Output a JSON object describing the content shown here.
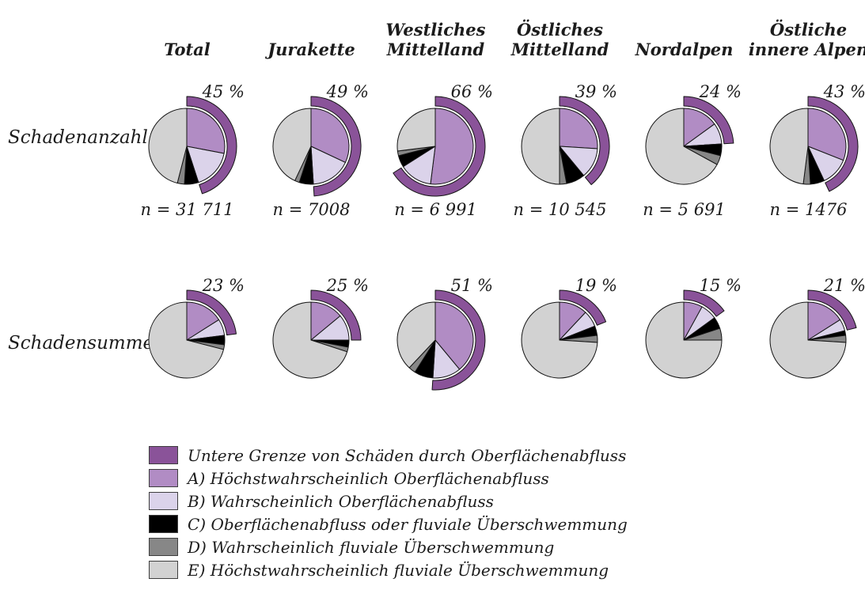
{
  "legend": {
    "items": [
      {
        "label": "Untere Grenze von Schäden durch Oberflächenabfluss",
        "color": "#8a5399"
      },
      {
        "label": "A) Höchstwahrscheinlich Oberflächenabfluss",
        "color": "#b18cc4"
      },
      {
        "label": "B) Wahrscheinlich Oberflächenabfluss",
        "color": "#dbd3ea"
      },
      {
        "label": "C) Oberflächenabfluss oder fluviale Überschwemmung",
        "color": "#000000"
      },
      {
        "label": "D) Wahrscheinlich fluviale Überschwemmung",
        "color": "#878787"
      },
      {
        "label": "E) Höchstwahrscheinlich fluviale Überschwemmung",
        "color": "#d2d2d2"
      }
    ]
  },
  "chart_data": {
    "type": "pie",
    "unit": "percent",
    "columns": [
      {
        "header_lines": [
          "Total"
        ]
      },
      {
        "header_lines": [
          "Jurakette"
        ]
      },
      {
        "header_lines": [
          "Westliches",
          "Mittelland"
        ]
      },
      {
        "header_lines": [
          "Östliches",
          "Mittelland"
        ]
      },
      {
        "header_lines": [
          "Nordalpen"
        ]
      },
      {
        "header_lines": [
          "Östliche",
          "innere Alpen"
        ]
      }
    ],
    "slice_categories": [
      "A) Höchstwahrscheinlich Oberflächenabfluss",
      "B) Wahrscheinlich Oberflächenabfluss",
      "C) Oberflächenabfluss oder fluviale Überschwemmung",
      "D) Wahrscheinlich fluviale Überschwemmung",
      "E) Höchstwahrscheinlich fluviale Überschwemmung"
    ],
    "arc_category": "Untere Grenze von Schäden durch Oberflächenabfluss",
    "rows": [
      {
        "label": "Schadenanzahl",
        "pies": [
          {
            "region": "Total",
            "arc_percent": 45,
            "arc_label": "45 %",
            "n_label": "n = 31 711",
            "slices": [
              28,
              17,
              6,
              3,
              46
            ]
          },
          {
            "region": "Jurakette",
            "arc_percent": 49,
            "arc_label": "49 %",
            "n_label": "n = 7008",
            "slices": [
              32,
              17,
              6,
              2,
              43
            ]
          },
          {
            "region": "Westliches Mittelland",
            "arc_percent": 66,
            "arc_label": "66 %",
            "n_label": "n = 6 991",
            "slices": [
              52,
              14,
              5,
              2,
              27
            ]
          },
          {
            "region": "Östliches Mittelland",
            "arc_percent": 39,
            "arc_label": "39 %",
            "n_label": "n = 10 545",
            "slices": [
              26,
              13,
              8,
              3,
              50
            ]
          },
          {
            "region": "Nordalpen",
            "arc_percent": 24,
            "arc_label": "24 %",
            "n_label": "n = 5 691",
            "slices": [
              15,
              9,
              5,
              4,
              67
            ]
          },
          {
            "region": "Östliche innere Alpen",
            "arc_percent": 43,
            "arc_label": "43 %",
            "n_label": "n = 1476",
            "slices": [
              31,
              12,
              6,
              3,
              48
            ]
          }
        ]
      },
      {
        "label": "Schadensumme",
        "pies": [
          {
            "region": "Total",
            "arc_percent": 23,
            "arc_label": "23 %",
            "slices": [
              16,
              7,
              4,
              2,
              71
            ]
          },
          {
            "region": "Jurakette",
            "arc_percent": 25,
            "arc_label": "25 %",
            "slices": [
              14,
              11,
              3,
              2,
              70
            ]
          },
          {
            "region": "Westliches Mittelland",
            "arc_percent": 51,
            "arc_label": "51 %",
            "slices": [
              39,
              12,
              8,
              3,
              38
            ]
          },
          {
            "region": "Östliches Mittelland",
            "arc_percent": 19,
            "arc_label": "19 %",
            "slices": [
              12,
              7,
              4,
              3,
              74
            ]
          },
          {
            "region": "Nordalpen",
            "arc_percent": 15,
            "arc_label": "15 %",
            "slices": [
              8,
              7,
              5,
              5,
              75
            ]
          },
          {
            "region": "Östliche innere Alpen",
            "arc_percent": 21,
            "arc_label": "21 %",
            "slices": [
              16,
              5,
              2,
              3,
              74
            ]
          }
        ]
      }
    ],
    "colors": {
      "arc": "#8a5399",
      "slices": [
        "#b18cc4",
        "#dbd3ea",
        "#000000",
        "#878787",
        "#d2d2d2"
      ],
      "stroke": "#141414"
    },
    "geometry": {
      "pie_radius": 48,
      "ring_inner_radius": 51,
      "ring_outer_radius": 63
    }
  }
}
